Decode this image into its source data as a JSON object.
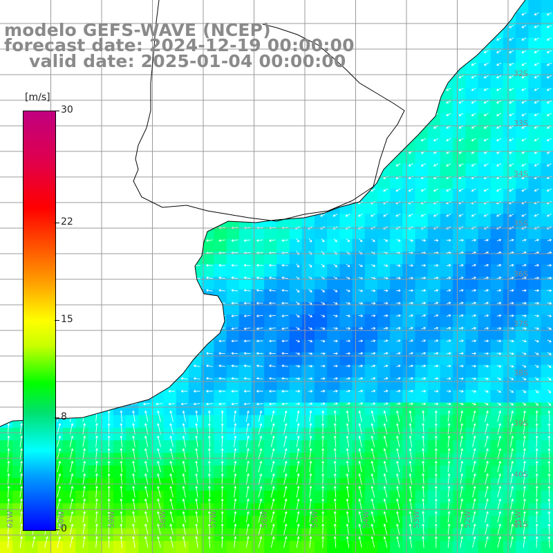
{
  "title": {
    "model": "modelo GEFS-WAVE (NCEP)",
    "forecast_date": "forecast date: 2024-12-19 00:00:00",
    "valid_date": "valid date: 2025-01-04 00:00:00"
  },
  "colorbar": {
    "unit": "[m/s]",
    "ticks": [
      {
        "label": "30",
        "value": 30
      },
      {
        "label": "22",
        "value": 22
      },
      {
        "label": "15",
        "value": 15
      },
      {
        "label": "8",
        "value": 8
      },
      {
        "label": "0",
        "value": 0
      }
    ],
    "range": [
      0,
      30
    ],
    "colors": [
      "#0000ff",
      "#00a0ff",
      "#00ffff",
      "#00ff00",
      "#ffff00",
      "#ff8000",
      "#ff0000",
      "#c00080"
    ]
  },
  "lat_labels": [
    "32S",
    "33S",
    "34S",
    "35S",
    "36S",
    "37S",
    "38S",
    "39S",
    "40S",
    "41S"
  ],
  "lon_labels": [
    "61W",
    "60W",
    "59W",
    "58W",
    "57W",
    "56W",
    "55W",
    "54W",
    "53W",
    "52W",
    "51W"
  ],
  "map": {
    "land_color": "#ffffff",
    "grid_color": "#999999",
    "coast_color": "#000000",
    "arrow_color": "#ffffff"
  }
}
